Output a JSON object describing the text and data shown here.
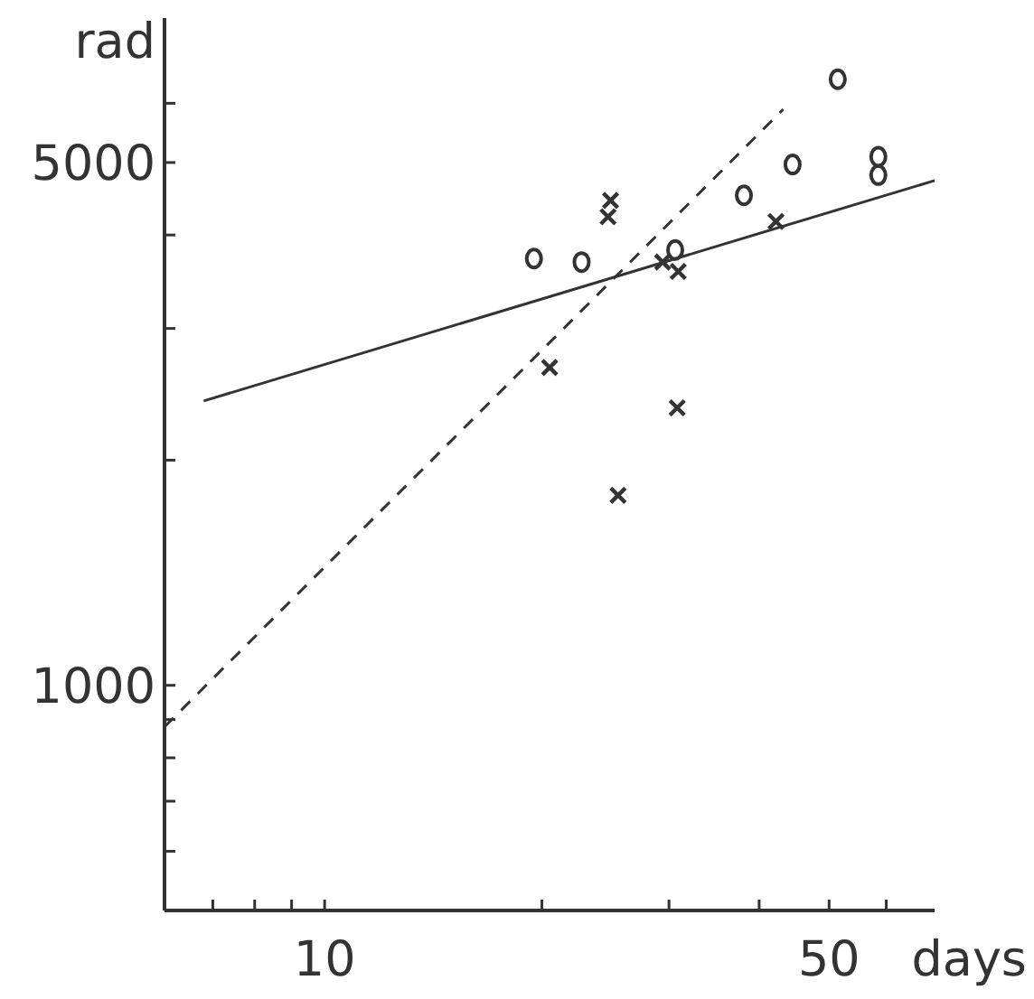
{
  "chart_data": {
    "type": "scatter",
    "xlabel": "days",
    "ylabel": "rad",
    "log": "xy",
    "grid": false,
    "xlim": [
      6,
      70
    ],
    "ylim": [
      500,
      7800
    ],
    "xticks": [
      {
        "value": 7,
        "label": null
      },
      {
        "value": 8,
        "label": null
      },
      {
        "value": 9,
        "label": null
      },
      10,
      {
        "value": 20,
        "label": null
      },
      {
        "value": 30,
        "label": null
      },
      {
        "value": 40,
        "label": null
      },
      50,
      {
        "value": 60,
        "label": null
      }
    ],
    "yticks": [
      {
        "value": 600,
        "label": null
      },
      {
        "value": 700,
        "label": null
      },
      {
        "value": 800,
        "label": null
      },
      {
        "value": 900,
        "label": null
      },
      1000,
      {
        "value": 2000,
        "label": null
      },
      {
        "value": 3000,
        "label": null
      },
      {
        "value": 4000,
        "label": null
      },
      5000,
      {
        "value": 6000,
        "label": null
      }
    ],
    "series": [
      {
        "marker": "circle",
        "color": "#333333",
        "x": [
          19.5,
          22.7,
          30.6,
          38.1,
          44.5,
          51.4,
          58.5,
          58.5
        ],
        "values": [
          3720,
          3680,
          3820,
          4520,
          4970,
          6460,
          5090,
          4810
        ]
      },
      {
        "marker": "cross",
        "color": "#333333",
        "x": [
          24.9,
          24.7,
          29.4,
          30.9,
          20.5,
          30.8,
          25.5,
          42.2
        ],
        "values": [
          4450,
          4230,
          3680,
          3575,
          2660,
          2350,
          1795,
          4170
        ]
      },
      {
        "type": "line",
        "line_style": "solid",
        "marker": "none",
        "color": "#333333",
        "x": [
          6.8,
          70
        ],
        "values": [
          2400,
          4730
        ]
      },
      {
        "type": "line",
        "line_style": "dashed",
        "marker": "none",
        "color": "#333333",
        "x": [
          6,
          43.2
        ],
        "values": [
          880,
          5890
        ]
      }
    ]
  }
}
